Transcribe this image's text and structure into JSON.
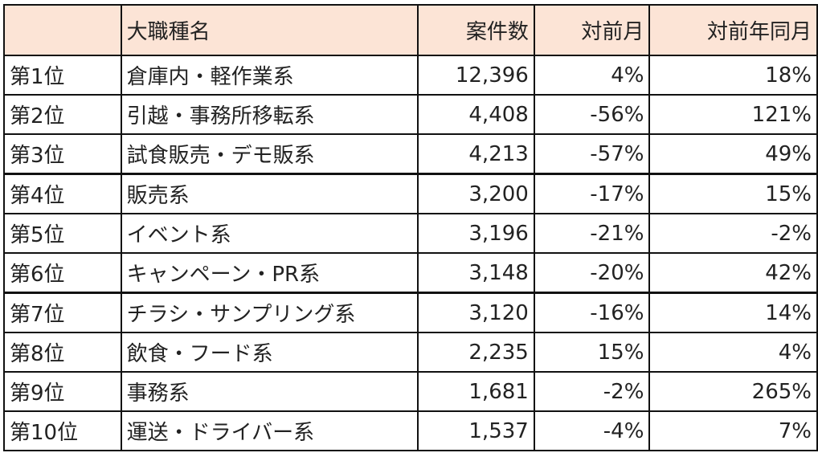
{
  "table": {
    "headers": {
      "rank": "",
      "category": "大職種名",
      "count": "案件数",
      "mom": "対前月",
      "yoy": "対前年同月"
    },
    "rows": [
      {
        "rank": "第1位",
        "category": "倉庫内・軽作業系",
        "count": "12,396",
        "mom": "4%",
        "yoy": "18%"
      },
      {
        "rank": "第2位",
        "category": "引越・事務所移転系",
        "count": "4,408",
        "mom": "-56%",
        "yoy": "121%"
      },
      {
        "rank": "第3位",
        "category": "試食販売・デモ販系",
        "count": "4,213",
        "mom": "-57%",
        "yoy": "49%"
      },
      {
        "rank": "第4位",
        "category": "販売系",
        "count": "3,200",
        "mom": "-17%",
        "yoy": "15%"
      },
      {
        "rank": "第5位",
        "category": "イベント系",
        "count": "3,196",
        "mom": "-21%",
        "yoy": "-2%"
      },
      {
        "rank": "第6位",
        "category": "キャンペーン・PR系",
        "count": "3,148",
        "mom": "-20%",
        "yoy": "42%"
      },
      {
        "rank": "第7位",
        "category": "チラシ・サンプリング系",
        "count": "3,120",
        "mom": "-16%",
        "yoy": "14%"
      },
      {
        "rank": "第8位",
        "category": "飲食・フード系",
        "count": "2,235",
        "mom": "15%",
        "yoy": "4%"
      },
      {
        "rank": "第9位",
        "category": "事務系",
        "count": "1,681",
        "mom": "-2%",
        "yoy": "265%"
      },
      {
        "rank": "第10位",
        "category": "運送・ドライバー系",
        "count": "1,537",
        "mom": "-4%",
        "yoy": "7%"
      }
    ]
  },
  "colors": {
    "header_bg": "#fce4d6",
    "border": "#111111",
    "text": "#222222"
  }
}
